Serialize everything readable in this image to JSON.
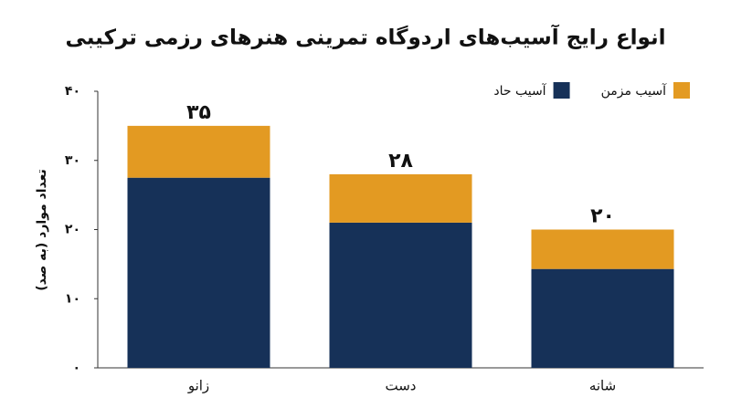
{
  "chart_data": {
    "type": "stacked_bar",
    "title": "انواع رایج آسیب‌های اردوگاه تمرینی هنرهای رزمی ترکیبی",
    "y_label": "تعداد موارد (به صد)",
    "categories": [
      "زانو",
      "دست",
      "شانه"
    ],
    "series": [
      {
        "name": "آسیب حاد",
        "color": "#163158",
        "values": [
          27.5,
          21,
          14.3
        ]
      },
      {
        "name": "آسیب مزمن",
        "color": "#e39a22",
        "values": [
          7.5,
          7,
          5.7
        ]
      }
    ],
    "totals": {
      "values": [
        35,
        28,
        20
      ],
      "value_labels": [
        "۳۵",
        "۲۸",
        "۲۰"
      ]
    },
    "ylim": [
      0,
      40
    ],
    "yticks": [
      {
        "value": 0,
        "label": "۰"
      },
      {
        "value": 10,
        "label": "۱۰"
      },
      {
        "value": 20,
        "label": "۲۰"
      },
      {
        "value": 30,
        "label": "۳۰"
      },
      {
        "value": 40,
        "label": "۴۰"
      }
    ],
    "grid": false,
    "legend": "top-right"
  }
}
